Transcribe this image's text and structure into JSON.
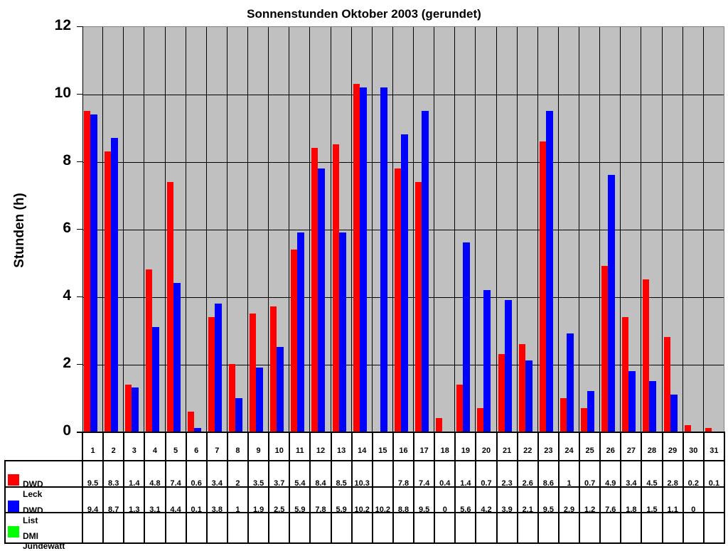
{
  "chart_data": {
    "type": "bar",
    "title": "Sonnenstunden Oktober 2003 (gerundet)",
    "xlabel": "",
    "ylabel": "Stunden (h)",
    "ylim": [
      0,
      12
    ],
    "yticks": [
      "0",
      "2",
      "4",
      "6",
      "8",
      "10",
      "12"
    ],
    "grid": true,
    "legend_position": "data-table-left",
    "categories": [
      "1",
      "2",
      "3",
      "4",
      "5",
      "6",
      "7",
      "8",
      "9",
      "10",
      "11",
      "12",
      "13",
      "14",
      "15",
      "16",
      "17",
      "18",
      "19",
      "20",
      "21",
      "22",
      "23",
      "24",
      "25",
      "26",
      "27",
      "28",
      "29",
      "30",
      "31"
    ],
    "series": [
      {
        "name": "DWD Leck",
        "color": "#ff0000",
        "values": [
          9.5,
          8.3,
          1.4,
          4.8,
          7.4,
          0.6,
          3.4,
          2,
          3.5,
          3.7,
          5.4,
          8.4,
          8.5,
          10.3,
          null,
          7.8,
          7.4,
          0.4,
          1.4,
          0.7,
          2.3,
          2.6,
          8.6,
          1,
          0.7,
          4.9,
          3.4,
          4.5,
          2.8,
          0.2,
          0.1
        ],
        "labels": [
          "9.5",
          "8.3",
          "1.4",
          "4.8",
          "7.4",
          "0.6",
          "3.4",
          "2",
          "3.5",
          "3.7",
          "5.4",
          "8.4",
          "8.5",
          "10.3",
          "",
          "7.8",
          "7.4",
          "0.4",
          "1.4",
          "0.7",
          "2.3",
          "2.6",
          "8.6",
          "1",
          "0.7",
          "4.9",
          "3.4",
          "4.5",
          "2.8",
          "0.2",
          "0.1"
        ]
      },
      {
        "name": "DWD List",
        "color": "#0000ff",
        "values": [
          9.4,
          8.7,
          1.3,
          3.1,
          4.4,
          0.1,
          3.8,
          1,
          1.9,
          2.5,
          5.9,
          7.8,
          5.9,
          10.2,
          10.2,
          8.8,
          9.5,
          0,
          5.6,
          4.2,
          3.9,
          2.1,
          9.5,
          2.9,
          1.2,
          7.6,
          1.8,
          1.5,
          1.1,
          0,
          null
        ],
        "labels": [
          "9.4",
          "8.7",
          "1.3",
          "3.1",
          "4.4",
          "0.1",
          "3.8",
          "1",
          "1.9",
          "2.5",
          "5.9",
          "7.8",
          "5.9",
          "10.2",
          "10.2",
          "8.8",
          "9.5",
          "0",
          "5.6",
          "4.2",
          "3.9",
          "2.1",
          "9.5",
          "2.9",
          "1.2",
          "7.6",
          "1.8",
          "1.5",
          "1.1",
          "0",
          ""
        ]
      },
      {
        "name": "DMI Jündewatt",
        "color": "#00ff00",
        "values": [
          null,
          null,
          null,
          null,
          null,
          null,
          null,
          null,
          null,
          null,
          null,
          null,
          null,
          null,
          null,
          null,
          null,
          null,
          null,
          null,
          null,
          null,
          null,
          null,
          null,
          null,
          null,
          null,
          null,
          null,
          null
        ],
        "labels": [
          "",
          "",
          "",
          "",
          "",
          "",
          "",
          "",
          "",
          "",
          "",
          "",
          "",
          "",
          "",
          "",
          "",
          "",
          "",
          "",
          "",
          "",
          "",
          "",
          "",
          "",
          "",
          "",
          "",
          "",
          ""
        ]
      }
    ]
  },
  "colors": {
    "plot_bg": "#c0c0c0"
  }
}
